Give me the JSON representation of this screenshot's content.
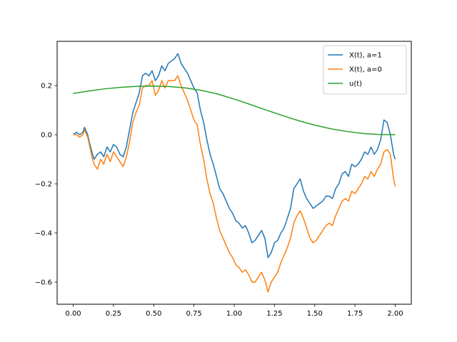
{
  "chart_data": {
    "type": "line",
    "title": "",
    "xlabel": "",
    "ylabel": "",
    "xlim": [
      -0.1,
      2.1
    ],
    "ylim": [
      -0.69,
      0.38
    ],
    "xticks": [
      0.0,
      0.25,
      0.5,
      0.75,
      1.0,
      1.25,
      1.5,
      1.75,
      2.0
    ],
    "xtick_labels": [
      "0.00",
      "0.25",
      "0.50",
      "0.75",
      "1.00",
      "1.25",
      "1.50",
      "1.75",
      "2.00"
    ],
    "yticks": [
      -0.6,
      -0.4,
      -0.2,
      0.0,
      0.2
    ],
    "ytick_labels": [
      "−0.6",
      "−0.4",
      "−0.2",
      "0.0",
      "0.2"
    ],
    "grid": false,
    "legend_position": "upper-right",
    "series": [
      {
        "name": "X(t), a=1",
        "color": "#1f77b4",
        "x": [
          0.0,
          0.02,
          0.04,
          0.06,
          0.07,
          0.09,
          0.1,
          0.12,
          0.13,
          0.15,
          0.17,
          0.19,
          0.21,
          0.23,
          0.25,
          0.27,
          0.29,
          0.31,
          0.33,
          0.35,
          0.37,
          0.39,
          0.41,
          0.43,
          0.45,
          0.47,
          0.49,
          0.51,
          0.53,
          0.55,
          0.57,
          0.59,
          0.61,
          0.63,
          0.65,
          0.67,
          0.69,
          0.71,
          0.73,
          0.75,
          0.77,
          0.79,
          0.81,
          0.83,
          0.85,
          0.87,
          0.89,
          0.91,
          0.93,
          0.95,
          0.97,
          0.99,
          1.01,
          1.03,
          1.05,
          1.07,
          1.09,
          1.11,
          1.13,
          1.15,
          1.17,
          1.19,
          1.21,
          1.23,
          1.25,
          1.27,
          1.29,
          1.31,
          1.33,
          1.35,
          1.37,
          1.39,
          1.41,
          1.43,
          1.45,
          1.47,
          1.49,
          1.51,
          1.53,
          1.55,
          1.57,
          1.59,
          1.61,
          1.63,
          1.65,
          1.67,
          1.69,
          1.71,
          1.73,
          1.75,
          1.77,
          1.79,
          1.81,
          1.83,
          1.85,
          1.87,
          1.89,
          1.91,
          1.93,
          1.95,
          1.97,
          1.99,
          2.0
        ],
        "y": [
          0.0,
          0.01,
          0.0,
          0.01,
          0.03,
          0.0,
          -0.03,
          -0.08,
          -0.1,
          -0.08,
          -0.07,
          -0.09,
          -0.05,
          -0.07,
          -0.04,
          -0.05,
          -0.08,
          -0.09,
          -0.05,
          0.02,
          0.09,
          0.13,
          0.17,
          0.24,
          0.25,
          0.24,
          0.26,
          0.22,
          0.24,
          0.28,
          0.26,
          0.29,
          0.3,
          0.31,
          0.33,
          0.29,
          0.27,
          0.25,
          0.22,
          0.19,
          0.17,
          0.1,
          0.05,
          -0.02,
          -0.08,
          -0.12,
          -0.17,
          -0.22,
          -0.24,
          -0.27,
          -0.3,
          -0.32,
          -0.35,
          -0.36,
          -0.38,
          -0.37,
          -0.4,
          -0.44,
          -0.43,
          -0.41,
          -0.39,
          -0.42,
          -0.5,
          -0.48,
          -0.44,
          -0.43,
          -0.4,
          -0.38,
          -0.34,
          -0.3,
          -0.22,
          -0.2,
          -0.18,
          -0.23,
          -0.26,
          -0.28,
          -0.3,
          -0.29,
          -0.28,
          -0.27,
          -0.25,
          -0.25,
          -0.26,
          -0.22,
          -0.2,
          -0.16,
          -0.15,
          -0.17,
          -0.12,
          -0.13,
          -0.12,
          -0.1,
          -0.07,
          -0.08,
          -0.05,
          -0.08,
          -0.06,
          -0.02,
          0.06,
          0.05,
          0.0,
          -0.08,
          -0.1
        ]
      },
      {
        "name": "X(t), a=0",
        "color": "#ff7f0e",
        "x": [
          0.0,
          0.02,
          0.04,
          0.06,
          0.07,
          0.09,
          0.1,
          0.12,
          0.13,
          0.15,
          0.17,
          0.19,
          0.21,
          0.23,
          0.25,
          0.27,
          0.29,
          0.31,
          0.33,
          0.35,
          0.37,
          0.39,
          0.41,
          0.43,
          0.45,
          0.47,
          0.49,
          0.51,
          0.53,
          0.55,
          0.57,
          0.59,
          0.61,
          0.63,
          0.65,
          0.67,
          0.69,
          0.71,
          0.73,
          0.75,
          0.77,
          0.79,
          0.81,
          0.83,
          0.85,
          0.87,
          0.89,
          0.91,
          0.93,
          0.95,
          0.97,
          0.99,
          1.01,
          1.03,
          1.05,
          1.07,
          1.09,
          1.11,
          1.13,
          1.15,
          1.17,
          1.19,
          1.21,
          1.23,
          1.25,
          1.27,
          1.29,
          1.31,
          1.33,
          1.35,
          1.37,
          1.39,
          1.41,
          1.43,
          1.45,
          1.47,
          1.49,
          1.51,
          1.53,
          1.55,
          1.57,
          1.59,
          1.61,
          1.63,
          1.65,
          1.67,
          1.69,
          1.71,
          1.73,
          1.75,
          1.77,
          1.79,
          1.81,
          1.83,
          1.85,
          1.87,
          1.89,
          1.91,
          1.93,
          1.95,
          1.97,
          1.99,
          2.0
        ],
        "y": [
          0.0,
          0.0,
          -0.01,
          0.0,
          0.02,
          -0.01,
          -0.04,
          -0.1,
          -0.12,
          -0.14,
          -0.1,
          -0.12,
          -0.08,
          -0.11,
          -0.07,
          -0.09,
          -0.11,
          -0.13,
          -0.09,
          -0.03,
          0.05,
          0.09,
          0.12,
          0.19,
          0.2,
          0.2,
          0.22,
          0.16,
          0.18,
          0.22,
          0.19,
          0.22,
          0.22,
          0.22,
          0.24,
          0.2,
          0.17,
          0.14,
          0.1,
          0.06,
          0.04,
          -0.04,
          -0.1,
          -0.18,
          -0.24,
          -0.28,
          -0.34,
          -0.39,
          -0.42,
          -0.45,
          -0.48,
          -0.5,
          -0.53,
          -0.54,
          -0.56,
          -0.55,
          -0.57,
          -0.6,
          -0.6,
          -0.58,
          -0.56,
          -0.59,
          -0.64,
          -0.6,
          -0.58,
          -0.56,
          -0.52,
          -0.49,
          -0.46,
          -0.42,
          -0.36,
          -0.33,
          -0.31,
          -0.34,
          -0.38,
          -0.42,
          -0.44,
          -0.43,
          -0.41,
          -0.39,
          -0.37,
          -0.36,
          -0.37,
          -0.33,
          -0.3,
          -0.27,
          -0.26,
          -0.27,
          -0.23,
          -0.24,
          -0.22,
          -0.2,
          -0.17,
          -0.18,
          -0.15,
          -0.17,
          -0.14,
          -0.12,
          -0.07,
          -0.06,
          -0.08,
          -0.18,
          -0.21
        ]
      },
      {
        "name": "u(t)",
        "color": "#2ca02c",
        "x": [
          0.0,
          0.1,
          0.2,
          0.3,
          0.4,
          0.5,
          0.6,
          0.7,
          0.8,
          0.9,
          1.0,
          1.1,
          1.2,
          1.3,
          1.4,
          1.5,
          1.6,
          1.7,
          1.8,
          1.9,
          2.0
        ],
        "y": [
          0.168,
          0.178,
          0.187,
          0.193,
          0.197,
          0.198,
          0.196,
          0.19,
          0.18,
          0.165,
          0.145,
          0.123,
          0.1,
          0.078,
          0.057,
          0.039,
          0.024,
          0.013,
          0.005,
          0.001,
          0.0
        ]
      }
    ]
  }
}
